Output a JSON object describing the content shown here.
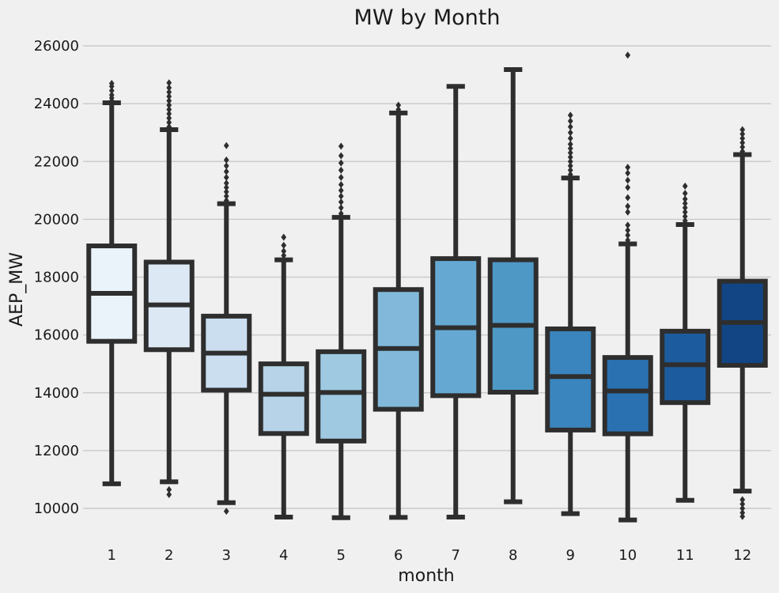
{
  "chart_data": {
    "type": "box",
    "title": "MW by Month",
    "xlabel": "month",
    "ylabel": "AEP_MW",
    "ylim": [
      9000,
      26400
    ],
    "yticks": [
      10000,
      12000,
      14000,
      16000,
      18000,
      20000,
      22000,
      24000,
      26000
    ],
    "grid": "horizontal",
    "categories": [
      "1",
      "2",
      "3",
      "4",
      "5",
      "6",
      "7",
      "8",
      "9",
      "10",
      "11",
      "12"
    ],
    "colors": [
      "#eaf2fa",
      "#dce9f5",
      "#cadef0",
      "#b6d3e8",
      "#9ec9e1",
      "#82b9da",
      "#65a9d3",
      "#4e98c6",
      "#3a85bd",
      "#2a71b1",
      "#1c5c9e",
      "#124584"
    ],
    "boxes": [
      {
        "category": "1",
        "whisker_low": 10850,
        "q1": 15780,
        "median": 17440,
        "q3": 19080,
        "whisker_high": 24030,
        "outliers": [
          24100,
          24200,
          24300,
          24450,
          24600,
          24700
        ]
      },
      {
        "category": "2",
        "whisker_low": 10920,
        "q1": 15490,
        "median": 17040,
        "q3": 18520,
        "whisker_high": 23100,
        "outliers": [
          10650,
          10480,
          23200,
          23350,
          23500,
          23650,
          23800,
          23950,
          24100,
          24250,
          24400,
          24550,
          24720
        ]
      },
      {
        "category": "3",
        "whisker_low": 10200,
        "q1": 14090,
        "median": 15370,
        "q3": 16650,
        "whisker_high": 20540,
        "outliers": [
          9900,
          20650,
          20800,
          20950,
          21100,
          21250,
          21450,
          21650,
          21850,
          22050,
          22550
        ]
      },
      {
        "category": "4",
        "whisker_low": 9700,
        "q1": 12590,
        "median": 13950,
        "q3": 15000,
        "whisker_high": 18600,
        "outliers": [
          18750,
          18900,
          19100,
          19380
        ]
      },
      {
        "category": "5",
        "whisker_low": 9680,
        "q1": 12330,
        "median": 14010,
        "q3": 15420,
        "whisker_high": 20070,
        "outliers": [
          20200,
          20400,
          20600,
          20800,
          21000,
          21200,
          21450,
          21700,
          21950,
          22200,
          22530
        ]
      },
      {
        "category": "6",
        "whisker_low": 9690,
        "q1": 13430,
        "median": 15530,
        "q3": 17570,
        "whisker_high": 23680,
        "outliers": [
          23800,
          23950
        ]
      },
      {
        "category": "7",
        "whisker_low": 9700,
        "q1": 13900,
        "median": 16250,
        "q3": 18640,
        "whisker_high": 24600,
        "outliers": []
      },
      {
        "category": "8",
        "whisker_low": 10230,
        "q1": 14020,
        "median": 16330,
        "q3": 18600,
        "whisker_high": 25180,
        "outliers": []
      },
      {
        "category": "9",
        "whisker_low": 9820,
        "q1": 12710,
        "median": 14560,
        "q3": 16210,
        "whisker_high": 21430,
        "outliers": [
          21550,
          21700,
          21850,
          22000,
          22150,
          22300,
          22450,
          22600,
          22800,
          23000,
          23200,
          23400,
          23600
        ]
      },
      {
        "category": "10",
        "whisker_low": 9600,
        "q1": 12580,
        "median": 14060,
        "q3": 15220,
        "whisker_high": 19150,
        "outliers": [
          19280,
          19450,
          19620,
          19800,
          20250,
          20450,
          20750,
          21100,
          21350,
          21600,
          21800,
          25680
        ]
      },
      {
        "category": "11",
        "whisker_low": 10280,
        "q1": 13660,
        "median": 14970,
        "q3": 16130,
        "whisker_high": 19820,
        "outliers": [
          19950,
          20100,
          20250,
          20400,
          20550,
          20700,
          20900,
          21150
        ]
      },
      {
        "category": "12",
        "whisker_low": 10600,
        "q1": 14950,
        "median": 16430,
        "q3": 17860,
        "whisker_high": 22240,
        "outliers": [
          9720,
          9850,
          10000,
          10150,
          10300,
          22350,
          22500,
          22650,
          22800,
          22950,
          23100
        ]
      }
    ]
  }
}
